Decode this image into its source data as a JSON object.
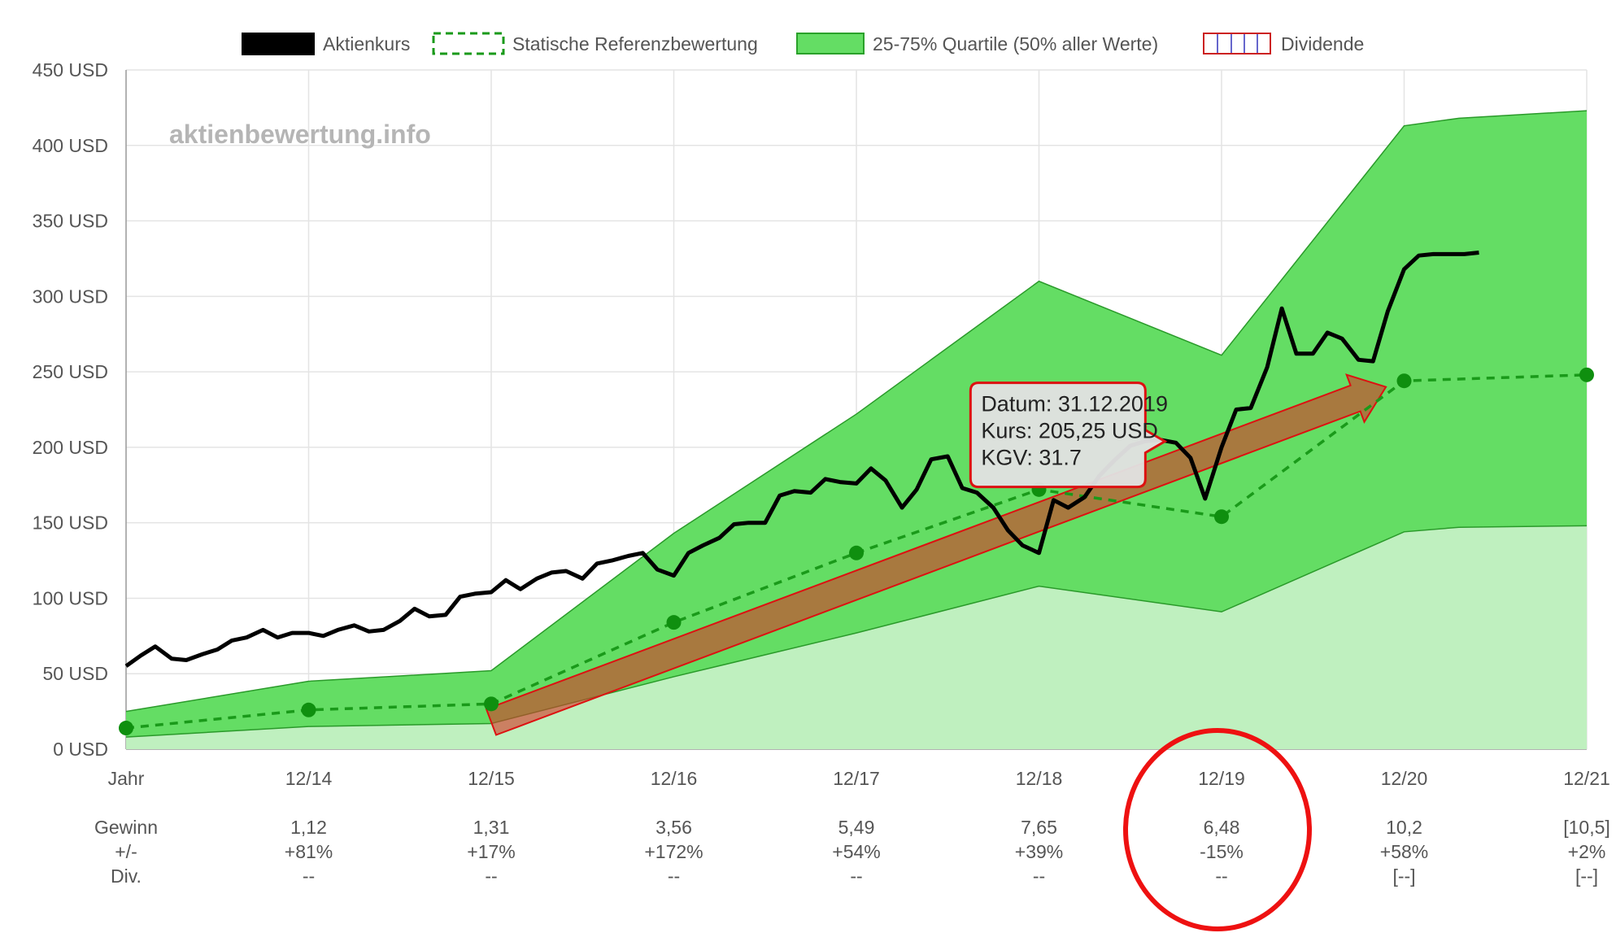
{
  "chart_data": {
    "type": "line",
    "watermark": "aktienbewertung.info",
    "legend": [
      {
        "key": "price",
        "label": "Aktienkurs",
        "color": "#000000"
      },
      {
        "key": "ref",
        "label": "Statische Referenzbewertung",
        "color": "#1a9a1a"
      },
      {
        "key": "quartile",
        "label": "25-75% Quartile (50% aller Werte)",
        "color": "#64dd64"
      },
      {
        "key": "dividend",
        "label": "Dividende",
        "color": "#cc2222"
      }
    ],
    "y_axis": {
      "min": 0,
      "max": 450,
      "step": 50,
      "unit": "USD",
      "ticks": [
        "0 USD",
        "50 USD",
        "100 USD",
        "150 USD",
        "200 USD",
        "250 USD",
        "300 USD",
        "350 USD",
        "400 USD",
        "450 USD"
      ]
    },
    "x_axis": {
      "categories": [
        "Jahr",
        "12/14",
        "12/15",
        "12/16",
        "12/17",
        "12/18",
        "12/19",
        "12/20",
        "12/21"
      ]
    },
    "rows": [
      {
        "label": "Gewinn",
        "values": [
          "1,12",
          "1,31",
          "3,56",
          "5,49",
          "7,65",
          "6,48",
          "10,2",
          "[10,5]"
        ]
      },
      {
        "label": "+/-",
        "values": [
          "+81%",
          "+17%",
          "+172%",
          "+54%",
          "+39%",
          "-15%",
          "+58%",
          "+2%"
        ]
      },
      {
        "label": "Div.",
        "values": [
          "--",
          "--",
          "--",
          "--",
          "--",
          "--",
          "[--]",
          "[--]"
        ]
      }
    ],
    "series": [
      {
        "name": "Statische Referenzbewertung",
        "style": "dashed",
        "x": [
          0,
          1,
          2,
          3,
          4,
          5,
          6,
          7,
          8
        ],
        "values": [
          14,
          26,
          30,
          84,
          130,
          172,
          154,
          244,
          248
        ]
      },
      {
        "name": "25-75% Quartile (50% aller Werte)",
        "style": "band",
        "x": [
          0,
          1,
          2,
          3,
          4,
          5,
          6,
          7,
          7.3,
          8
        ],
        "upper": [
          25,
          45,
          52,
          143,
          222,
          310,
          261,
          413,
          418,
          423
        ],
        "lower": [
          8,
          15,
          17,
          48,
          77,
          108,
          91,
          144,
          147,
          148
        ]
      },
      {
        "name": "Aktienkurs",
        "style": "solid",
        "x": [
          0,
          0.08,
          0.16,
          0.25,
          0.33,
          0.42,
          0.5,
          0.58,
          0.66,
          0.75,
          0.83,
          0.91,
          1.0,
          1.08,
          1.16,
          1.25,
          1.33,
          1.41,
          1.5,
          1.58,
          1.66,
          1.75,
          1.83,
          1.91,
          2.0,
          2.08,
          2.16,
          2.25,
          2.33,
          2.41,
          2.5,
          2.58,
          2.66,
          2.75,
          2.83,
          2.91,
          3.0,
          3.08,
          3.16,
          3.25,
          3.33,
          3.41,
          3.5,
          3.58,
          3.66,
          3.75,
          3.83,
          3.91,
          4.0,
          4.08,
          4.16,
          4.25,
          4.33,
          4.41,
          4.5,
          4.58,
          4.66,
          4.75,
          4.83,
          4.91,
          5.0,
          5.08,
          5.16,
          5.25,
          5.33,
          5.41,
          5.5,
          5.58,
          5.66,
          5.75,
          5.83,
          5.91,
          6.0,
          6.08,
          6.16,
          6.25,
          6.33,
          6.41,
          6.5,
          6.58,
          6.66,
          6.75,
          6.83,
          6.91,
          7.0,
          7.08,
          7.16,
          7.25,
          7.33,
          7.41
        ],
        "values": [
          55,
          62,
          68,
          60,
          59,
          63,
          66,
          72,
          74,
          79,
          74,
          77,
          77,
          75,
          79,
          82,
          78,
          79,
          85,
          93,
          88,
          89,
          101,
          103,
          104,
          112,
          106,
          113,
          117,
          118,
          113,
          123,
          125,
          128,
          130,
          119,
          115,
          130,
          135,
          140,
          149,
          150,
          150,
          168,
          171,
          170,
          179,
          177,
          176,
          186,
          178,
          160,
          172,
          192,
          194,
          173,
          170,
          160,
          145,
          135,
          130,
          165,
          160,
          167,
          181,
          191,
          201,
          204,
          205,
          203,
          193,
          166,
          200,
          225,
          226,
          253,
          292,
          262,
          262,
          276,
          272,
          258,
          257,
          290,
          318,
          327,
          328,
          328,
          328,
          329
        ]
      }
    ],
    "trend_arrow": {
      "from": {
        "x": 2.0,
        "y": 18
      },
      "to": {
        "x": 6.9,
        "y": 240
      }
    },
    "tooltip": {
      "lines": [
        "Datum: 31.12.2019",
        "Kurs: 205,25 USD",
        "KGV: 31.7"
      ],
      "anchor_x": 5.85,
      "anchor_y": 205
    }
  }
}
